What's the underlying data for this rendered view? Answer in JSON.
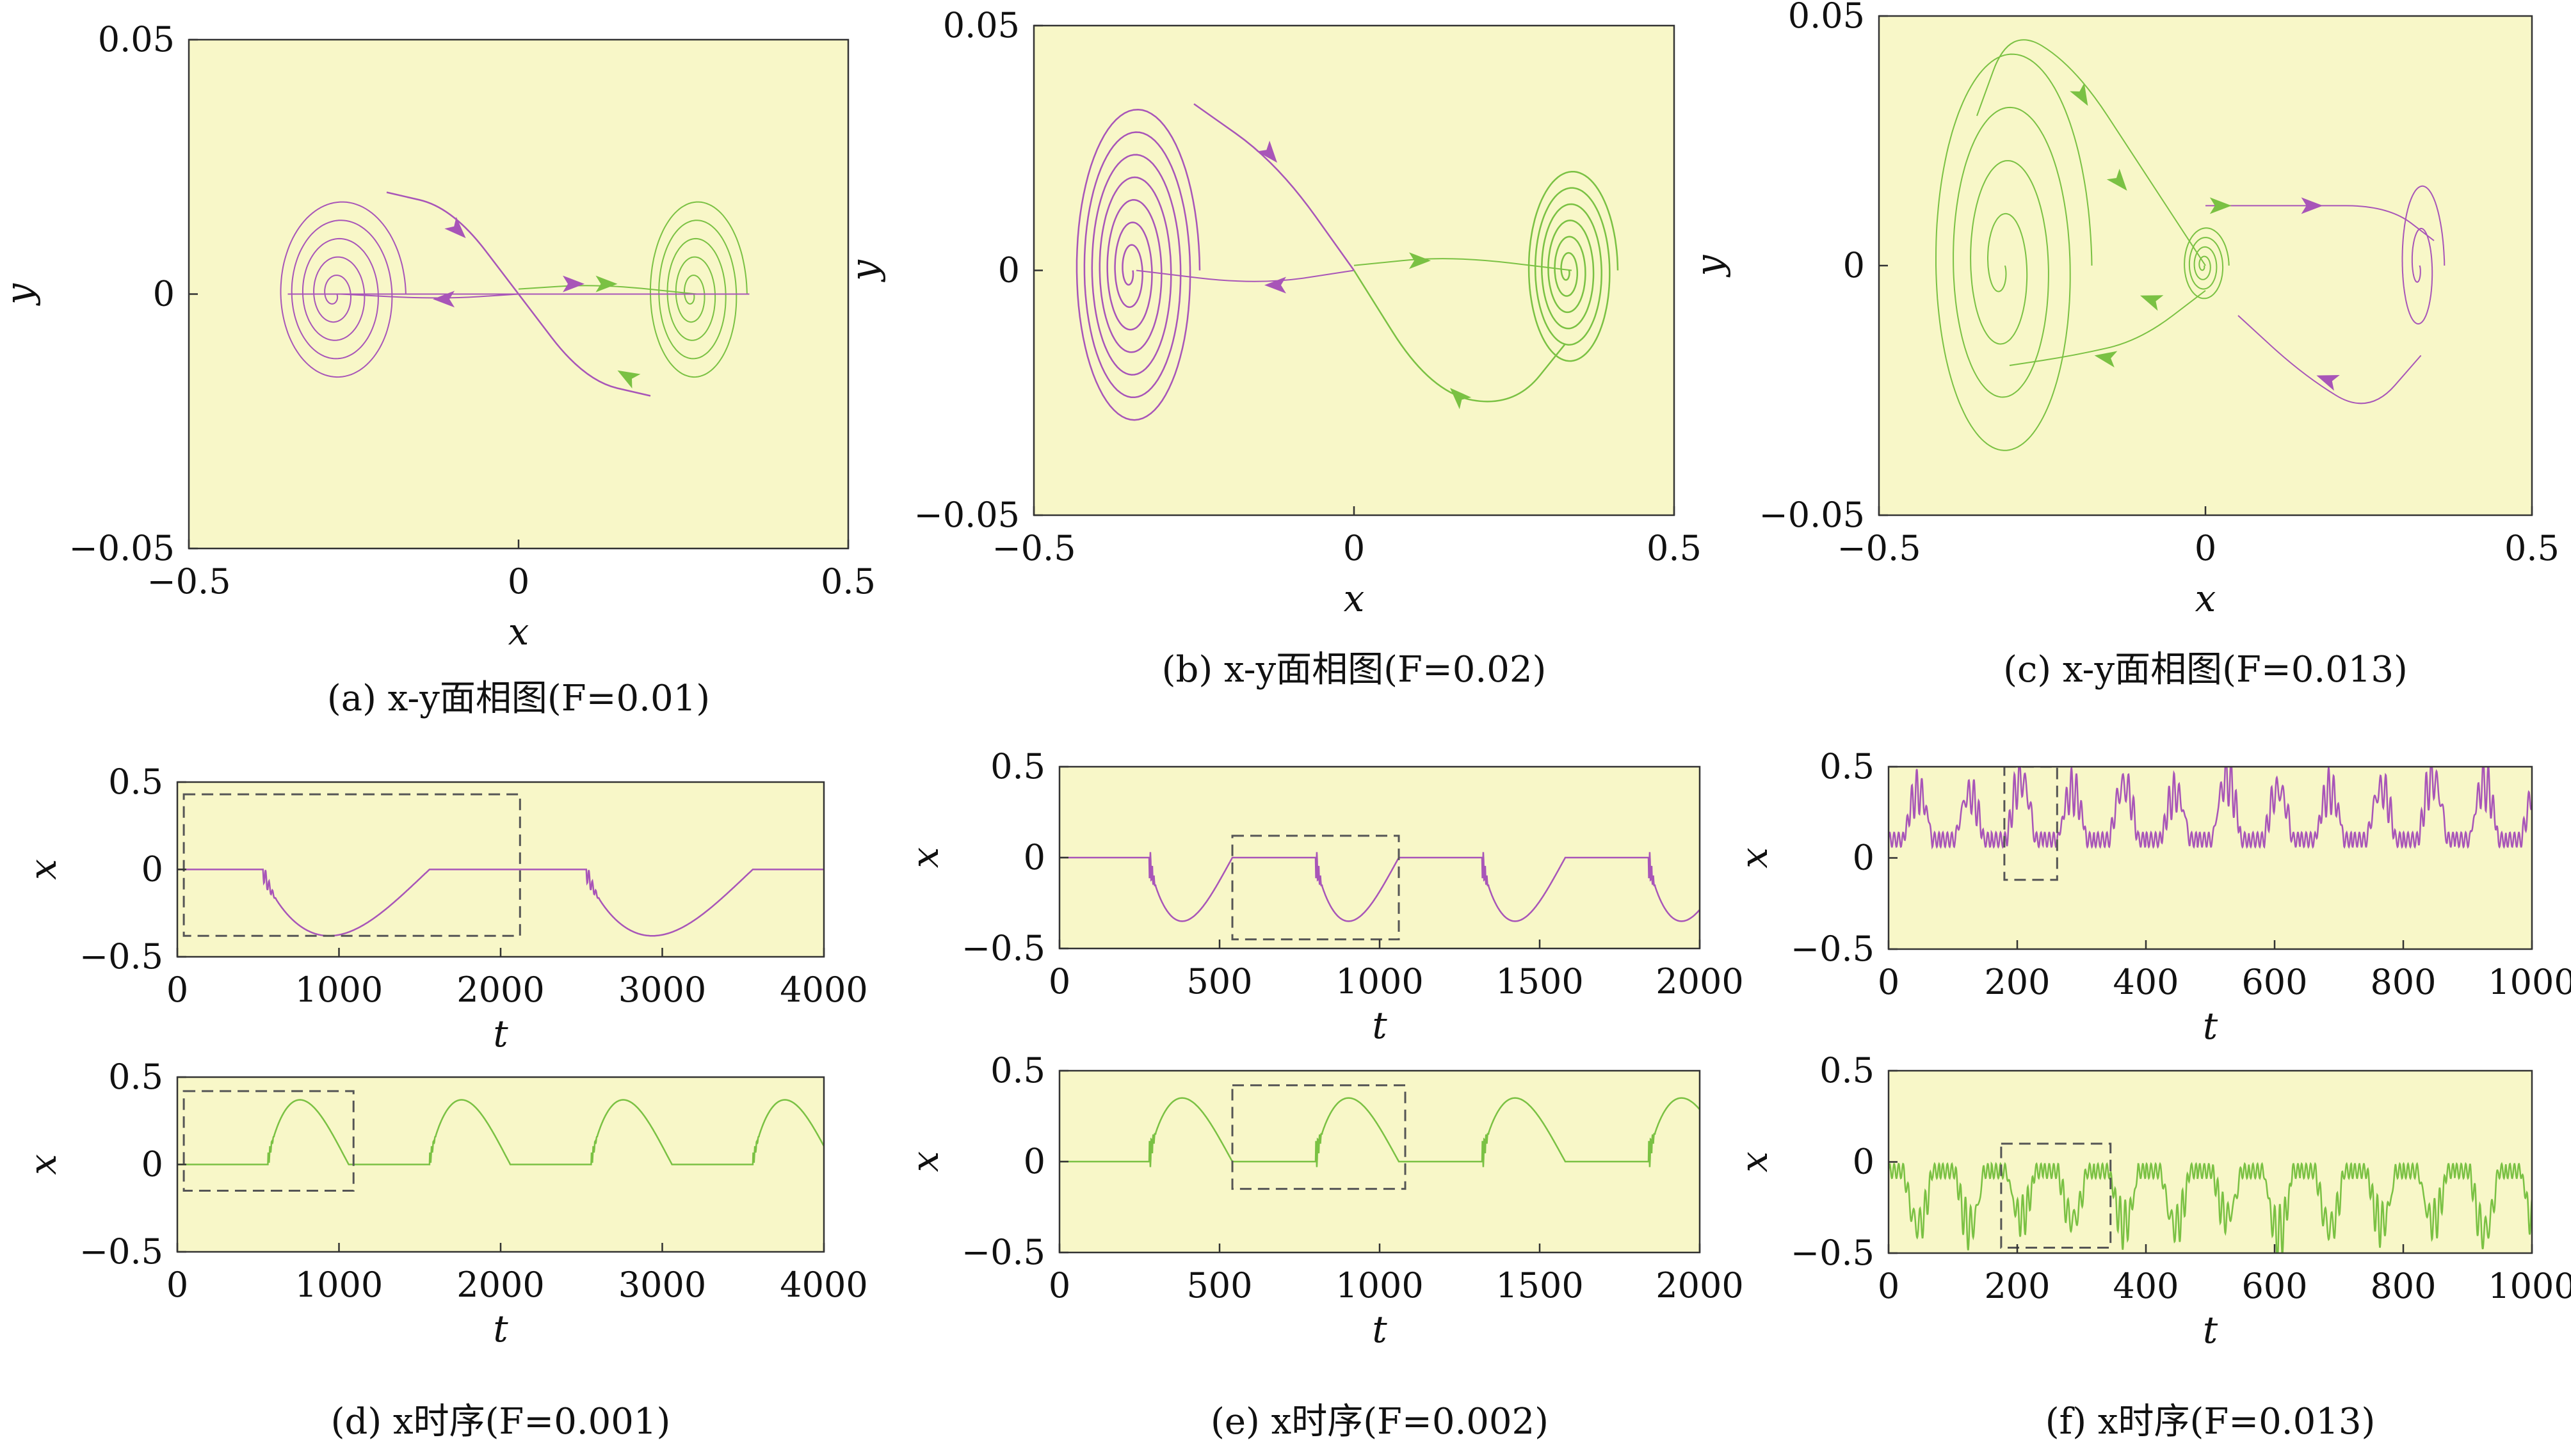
{
  "chart_data": [
    {
      "id": "a",
      "type": "line",
      "caption": "(a) x-y面相图(F=0.01)",
      "xlabel": "x",
      "ylabel": "y",
      "xlim": [
        -0.5,
        0.5
      ],
      "ylim": [
        -0.05,
        0.05
      ],
      "xticks": [
        {
          "v": -0.5,
          "label": "−0.5"
        },
        {
          "v": 0,
          "label": "0"
        },
        {
          "v": 0.5,
          "label": "0.5"
        }
      ],
      "yticks": [
        {
          "v": 0.05,
          "label": "0.05"
        },
        {
          "v": 0,
          "label": "0"
        },
        {
          "v": -0.05,
          "label": "−0.05"
        }
      ],
      "background": "#f8f7c8",
      "series": [
        {
          "color": "#a855b8",
          "kind": "spiral",
          "cx": -0.27,
          "cy": 0.0,
          "r": 0.11,
          "ry": 0.019,
          "turns": 5,
          "width": 2
        },
        {
          "color": "#a855b8",
          "kind": "path",
          "width": 2.5,
          "points": [
            [
              -0.2,
              0.02
            ],
            [
              -0.1,
              0.017
            ],
            [
              0.0,
              0.0
            ],
            [
              0.1,
              -0.017
            ],
            [
              0.2,
              -0.02
            ]
          ]
        },
        {
          "color": "#a855b8",
          "kind": "path",
          "width": 2,
          "points": [
            [
              0.0,
              0.0
            ],
            [
              -0.12,
              -0.001
            ],
            [
              -0.27,
              0.0
            ]
          ]
        },
        {
          "color": "#7ac143",
          "kind": "spiral",
          "cx": 0.27,
          "cy": 0.0,
          "r": 0.085,
          "ry": 0.019,
          "turns": 5,
          "width": 2
        },
        {
          "color": "#7ac143",
          "kind": "path",
          "width": 2,
          "points": [
            [
              0.0,
              0.001
            ],
            [
              0.12,
              0.002
            ],
            [
              0.27,
              0.0
            ]
          ]
        },
        {
          "color": "#a855b8",
          "kind": "path",
          "width": 2,
          "points": [
            [
              -0.35,
              0.0
            ],
            [
              0.35,
              0.0
            ]
          ]
        }
      ],
      "arrows": [
        {
          "x": -0.08,
          "y": 0.011,
          "dir": 1,
          "color": "#a855b8",
          "angle": 45
        },
        {
          "x": -0.13,
          "y": -0.001,
          "dir": 0,
          "color": "#a855b8",
          "angle": 180
        },
        {
          "x": 0.1,
          "y": 0.002,
          "dir": 0,
          "color": "#a855b8",
          "angle": 0
        },
        {
          "x": 0.15,
          "y": 0.002,
          "dir": 0,
          "color": "#7ac143",
          "angle": 0
        },
        {
          "x": 0.15,
          "y": -0.015,
          "dir": 0,
          "color": "#7ac143",
          "angle": 210
        }
      ]
    },
    {
      "id": "b",
      "type": "line",
      "caption": "(b) x-y面相图(F=0.02)",
      "xlabel": "x",
      "ylabel": "y",
      "xlim": [
        -0.5,
        0.5
      ],
      "ylim": [
        -0.05,
        0.05
      ],
      "xticks": [
        {
          "v": -0.5,
          "label": "−0.5"
        },
        {
          "v": 0,
          "label": "0"
        },
        {
          "v": 0.5,
          "label": "0.5"
        }
      ],
      "yticks": [
        {
          "v": 0.05,
          "label": "0.05"
        },
        {
          "v": 0,
          "label": "0"
        },
        {
          "v": -0.05,
          "label": "−0.05"
        }
      ],
      "background": "#f8f7c8",
      "series": [
        {
          "color": "#a855b8",
          "kind": "spiral",
          "cx": -0.34,
          "cy": 0.0,
          "r": 0.11,
          "ry": 0.034,
          "turns": 7,
          "width": 2.5
        },
        {
          "color": "#a855b8",
          "kind": "path",
          "width": 2.5,
          "points": [
            [
              -0.25,
              0.034
            ],
            [
              -0.12,
              0.022
            ],
            [
              0.0,
              0.0
            ]
          ]
        },
        {
          "color": "#a855b8",
          "kind": "path",
          "width": 2,
          "points": [
            [
              0.0,
              0.0
            ],
            [
              -0.15,
              -0.003
            ],
            [
              -0.34,
              0.0
            ]
          ]
        },
        {
          "color": "#7ac143",
          "kind": "spiral",
          "cx": 0.34,
          "cy": 0.0,
          "r": 0.08,
          "ry": 0.021,
          "turns": 6,
          "width": 2.5
        },
        {
          "color": "#7ac143",
          "kind": "path",
          "width": 2.5,
          "points": [
            [
              0.0,
              0.0
            ],
            [
              0.12,
              -0.025
            ],
            [
              0.25,
              -0.028
            ],
            [
              0.33,
              -0.015
            ]
          ]
        },
        {
          "color": "#7ac143",
          "kind": "path",
          "width": 2,
          "points": [
            [
              0.0,
              0.001
            ],
            [
              0.15,
              0.003
            ],
            [
              0.34,
              0.0
            ]
          ]
        }
      ],
      "arrows": [
        {
          "x": -0.12,
          "y": 0.022,
          "dir": 0,
          "color": "#a855b8",
          "angle": 50
        },
        {
          "x": -0.14,
          "y": -0.003,
          "dir": 0,
          "color": "#a855b8",
          "angle": 180
        },
        {
          "x": 0.12,
          "y": 0.002,
          "dir": 0,
          "color": "#7ac143",
          "angle": 0
        },
        {
          "x": 0.15,
          "y": -0.024,
          "dir": 0,
          "color": "#7ac143",
          "angle": 225
        }
      ]
    },
    {
      "id": "c",
      "type": "line",
      "caption": "(c) x-y面相图(F=0.013)",
      "xlabel": "x",
      "ylabel": "y",
      "xlim": [
        -0.5,
        0.5
      ],
      "ylim": [
        -0.05,
        0.05
      ],
      "xticks": [
        {
          "v": -0.5,
          "label": "−0.5"
        },
        {
          "v": 0,
          "label": "0"
        },
        {
          "v": 0.5,
          "label": "0.5"
        }
      ],
      "yticks": [
        {
          "v": 0.05,
          "label": "0.05"
        },
        {
          "v": 0,
          "label": "0"
        },
        {
          "v": -0.05,
          "label": "−0.05"
        }
      ],
      "background": "#f8f7c8",
      "series": [
        {
          "color": "#7ac143",
          "kind": "spiral",
          "cx": -0.3,
          "cy": 0.0,
          "r": 0.14,
          "ry": 0.045,
          "turns": 4,
          "width": 2
        },
        {
          "color": "#7ac143",
          "kind": "path",
          "width": 2,
          "points": [
            [
              -0.35,
              0.03
            ],
            [
              -0.3,
              0.048
            ],
            [
              -0.2,
              0.04
            ],
            [
              -0.1,
              0.02
            ],
            [
              0.0,
              0.0
            ]
          ]
        },
        {
          "color": "#7ac143",
          "kind": "spiral",
          "cx": 0.0,
          "cy": 0.0,
          "r": 0.04,
          "ry": 0.008,
          "turns": 4,
          "width": 2
        },
        {
          "color": "#7ac143",
          "kind": "path",
          "width": 2,
          "points": [
            [
              0.0,
              -0.005
            ],
            [
              -0.1,
              -0.015
            ],
            [
              -0.2,
              -0.018
            ],
            [
              -0.3,
              -0.02
            ]
          ]
        },
        {
          "color": "#a855b8",
          "kind": "path",
          "width": 2,
          "points": [
            [
              0.0,
              0.012
            ],
            [
              0.15,
              0.012
            ],
            [
              0.28,
              0.012
            ],
            [
              0.35,
              0.005
            ]
          ]
        },
        {
          "color": "#a855b8",
          "kind": "spiral",
          "cx": 0.33,
          "cy": 0.0,
          "r": 0.04,
          "ry": 0.018,
          "turns": 2,
          "width": 2
        },
        {
          "color": "#a855b8",
          "kind": "path",
          "width": 2,
          "points": [
            [
              0.33,
              -0.018
            ],
            [
              0.25,
              -0.03
            ],
            [
              0.15,
              -0.022
            ],
            [
              0.05,
              -0.01
            ]
          ]
        }
      ],
      "arrows": [
        {
          "x": -0.18,
          "y": 0.032,
          "dir": 0,
          "color": "#7ac143",
          "angle": 60
        },
        {
          "x": -0.12,
          "y": 0.015,
          "dir": 0,
          "color": "#7ac143",
          "angle": 50
        },
        {
          "x": 0.04,
          "y": 0.012,
          "dir": 0,
          "color": "#7ac143",
          "angle": 0
        },
        {
          "x": -0.1,
          "y": -0.006,
          "dir": 0,
          "color": "#7ac143",
          "angle": 200
        },
        {
          "x": -0.17,
          "y": -0.018,
          "dir": 0,
          "color": "#7ac143",
          "angle": 190
        },
        {
          "x": 0.18,
          "y": 0.012,
          "dir": 0,
          "color": "#a855b8",
          "angle": 0
        },
        {
          "x": 0.17,
          "y": -0.022,
          "dir": 0,
          "color": "#a855b8",
          "angle": 200
        }
      ]
    },
    {
      "id": "d1",
      "type": "line",
      "caption": "",
      "xlabel": "t",
      "ylabel": "x",
      "xlim": [
        0,
        4000
      ],
      "ylim": [
        -0.5,
        0.5
      ],
      "xticks": [
        {
          "v": 0,
          "label": "0"
        },
        {
          "v": 1000,
          "label": "1000"
        },
        {
          "v": 2000,
          "label": "2000"
        },
        {
          "v": 3000,
          "label": "3000"
        },
        {
          "v": 4000,
          "label": "4000"
        }
      ],
      "yticks": [
        {
          "v": 0.5,
          "label": "0.5"
        },
        {
          "v": 0,
          "label": "0"
        },
        {
          "v": -0.5,
          "label": "−0.5"
        }
      ],
      "background": "#f8f7c8",
      "color": "#a855b8",
      "wave": {
        "period": 2000,
        "t0": 530,
        "half": 1030,
        "amp": 0.38,
        "sign": -1,
        "ringing": 0.06
      },
      "box": {
        "x0": 40,
        "x1": 2120,
        "y0": -0.38,
        "y1": 0.43
      }
    },
    {
      "id": "d2",
      "type": "line",
      "caption": "(d) x时序(F=0.001)",
      "xlabel": "t",
      "ylabel": "x",
      "xlim": [
        0,
        4000
      ],
      "ylim": [
        -0.5,
        0.5
      ],
      "xticks": [
        {
          "v": 0,
          "label": "0"
        },
        {
          "v": 1000,
          "label": "1000"
        },
        {
          "v": 2000,
          "label": "2000"
        },
        {
          "v": 3000,
          "label": "3000"
        },
        {
          "v": 4000,
          "label": "4000"
        }
      ],
      "yticks": [
        {
          "v": 0.5,
          "label": "0.5"
        },
        {
          "v": 0,
          "label": "0"
        },
        {
          "v": -0.5,
          "label": "−0.5"
        }
      ],
      "background": "#f8f7c8",
      "color": "#7ac143",
      "wave": {
        "period": 1000,
        "t0": 560,
        "half": 500,
        "amp": 0.37,
        "sign": 1,
        "ringing": 0.05
      },
      "box": {
        "x0": 40,
        "x1": 1090,
        "y0": -0.15,
        "y1": 0.42
      }
    },
    {
      "id": "e1",
      "type": "line",
      "caption": "",
      "xlabel": "t",
      "ylabel": "x",
      "xlim": [
        0,
        2000
      ],
      "ylim": [
        -0.5,
        0.5
      ],
      "xticks": [
        {
          "v": 0,
          "label": "0"
        },
        {
          "v": 500,
          "label": "500"
        },
        {
          "v": 1000,
          "label": "1000"
        },
        {
          "v": 1500,
          "label": "1500"
        },
        {
          "v": 2000,
          "label": "2000"
        }
      ],
      "yticks": [
        {
          "v": 0.5,
          "label": "0.5"
        },
        {
          "v": 0,
          "label": "0"
        },
        {
          "v": -0.5,
          "label": "−0.5"
        }
      ],
      "background": "#f8f7c8",
      "color": "#a855b8",
      "wave": {
        "period": 520,
        "t0": 280,
        "half": 260,
        "amp": 0.35,
        "sign": -1,
        "ringing": 0.1
      },
      "box": {
        "x0": 540,
        "x1": 1060,
        "y0": -0.45,
        "y1": 0.12
      }
    },
    {
      "id": "e2",
      "type": "line",
      "caption": "(e) x时序(F=0.002)",
      "xlabel": "t",
      "ylabel": "x",
      "xlim": [
        0,
        2000
      ],
      "ylim": [
        -0.5,
        0.5
      ],
      "xticks": [
        {
          "v": 0,
          "label": "0"
        },
        {
          "v": 500,
          "label": "500"
        },
        {
          "v": 1000,
          "label": "1000"
        },
        {
          "v": 1500,
          "label": "1500"
        },
        {
          "v": 2000,
          "label": "2000"
        }
      ],
      "yticks": [
        {
          "v": 0.5,
          "label": "0.5"
        },
        {
          "v": 0,
          "label": "0"
        },
        {
          "v": -0.5,
          "label": "−0.5"
        }
      ],
      "background": "#f8f7c8",
      "color": "#7ac143",
      "wave": {
        "period": 520,
        "t0": 280,
        "half": 260,
        "amp": 0.35,
        "sign": 1,
        "ringing": 0.1
      },
      "box": {
        "x0": 540,
        "x1": 1080,
        "y0": -0.15,
        "y1": 0.42
      }
    },
    {
      "id": "f1",
      "type": "line",
      "caption": "",
      "xlabel": "t",
      "ylabel": "x",
      "xlim": [
        0,
        1000
      ],
      "ylim": [
        -0.5,
        0.5
      ],
      "xticks": [
        {
          "v": 0,
          "label": "0"
        },
        {
          "v": 200,
          "label": "200"
        },
        {
          "v": 400,
          "label": "400"
        },
        {
          "v": 600,
          "label": "600"
        },
        {
          "v": 800,
          "label": "800"
        },
        {
          "v": 1000,
          "label": "1000"
        }
      ],
      "yticks": [
        {
          "v": 0.5,
          "label": "0.5"
        },
        {
          "v": 0,
          "label": "0"
        },
        {
          "v": -0.5,
          "label": "−0.5"
        }
      ],
      "background": "#f8f7c8",
      "color": "#a855b8",
      "chaos": {
        "period": 80,
        "base": 0.1,
        "amp": 0.28,
        "sign": 1,
        "seed": 3
      },
      "box": {
        "x0": 180,
        "x1": 262,
        "y0": -0.12,
        "y1": 0.5
      }
    },
    {
      "id": "f2",
      "type": "line",
      "caption": "(f) x时序(F=0.013)",
      "xlabel": "t",
      "ylabel": "x",
      "xlim": [
        0,
        1000
      ],
      "ylim": [
        -0.5,
        0.5
      ],
      "xticks": [
        {
          "v": 0,
          "label": "0"
        },
        {
          "v": 200,
          "label": "200"
        },
        {
          "v": 400,
          "label": "400"
        },
        {
          "v": 600,
          "label": "600"
        },
        {
          "v": 800,
          "label": "800"
        },
        {
          "v": 1000,
          "label": "1000"
        }
      ],
      "yticks": [
        {
          "v": 0.5,
          "label": "0.5"
        },
        {
          "v": 0,
          "label": "0"
        },
        {
          "v": -0.5,
          "label": "−0.5"
        }
      ],
      "background": "#f8f7c8",
      "color": "#7ac143",
      "chaos": {
        "period": 80,
        "base": -0.05,
        "amp": 0.3,
        "sign": -1,
        "seed": 7
      },
      "box": {
        "x0": 175,
        "x1": 345,
        "y0": -0.47,
        "y1": 0.1
      }
    }
  ]
}
